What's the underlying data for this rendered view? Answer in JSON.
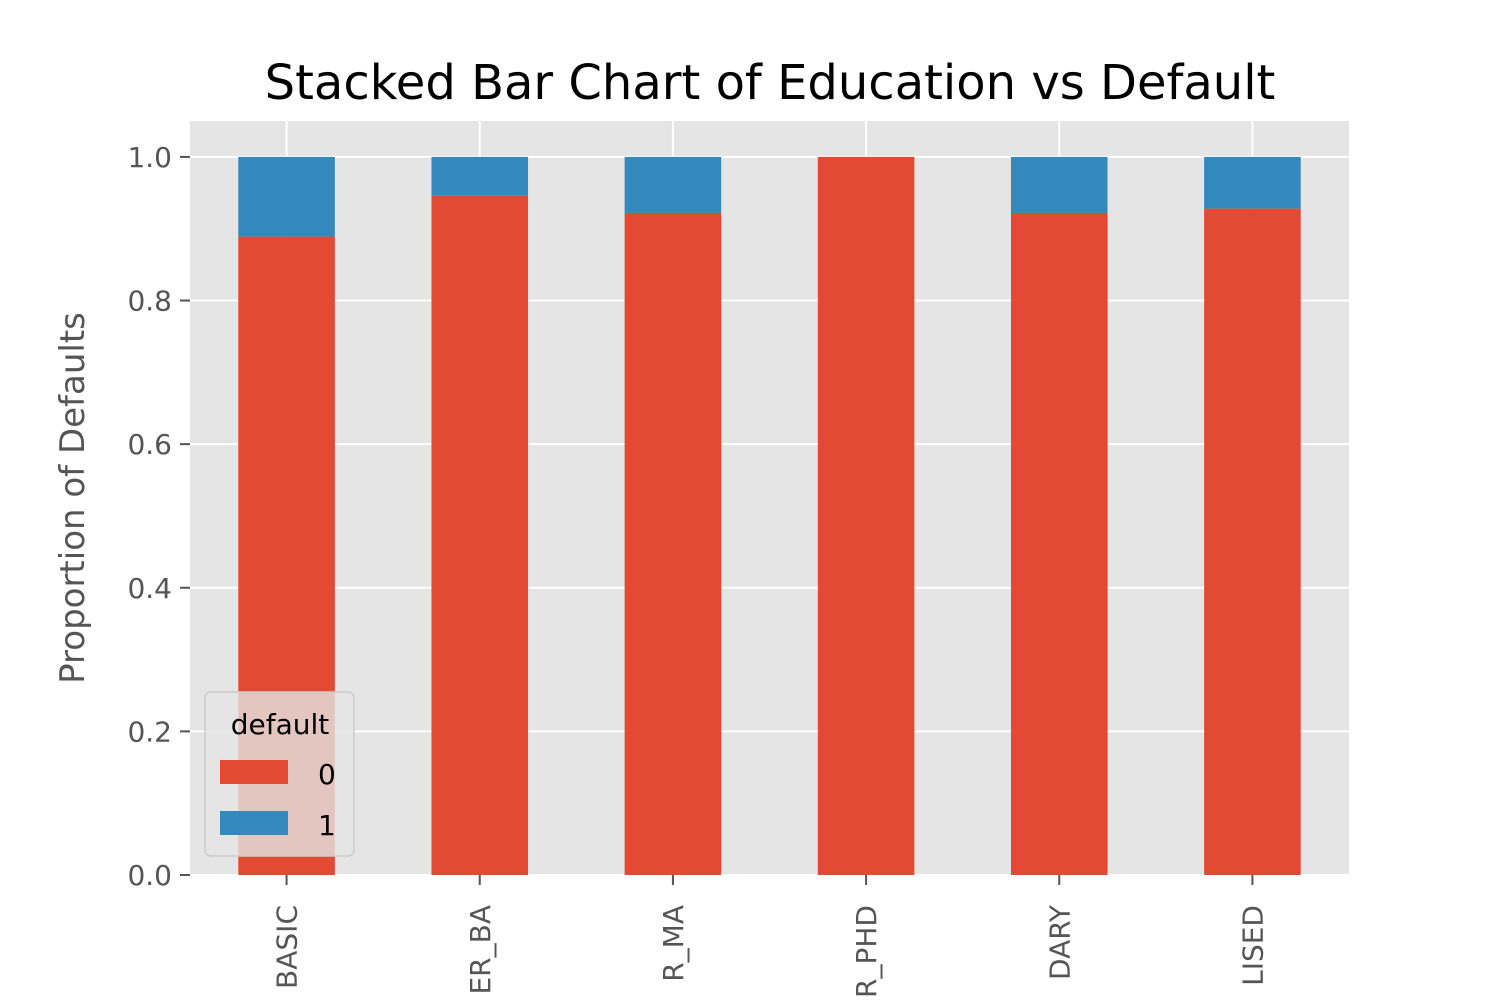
{
  "chart_data": {
    "type": "bar",
    "stacked": true,
    "title": "Stacked Bar Chart of Education vs Default",
    "xlabel": "",
    "ylabel": "Proportion of Defaults",
    "ylim": [
      0,
      1.05
    ],
    "yticks": [
      "0.0",
      "0.2",
      "0.4",
      "0.6",
      "0.8",
      "1.0"
    ],
    "grid": true,
    "legend_placement": "lower-left",
    "categories": [
      "BASIC",
      "ER_BA",
      "R_MA",
      "R_PHD",
      "DARY",
      "LISED"
    ],
    "legend_title": "default",
    "series": [
      {
        "name": "0",
        "color": "#E24A33",
        "values": [
          0.889,
          0.946,
          0.922,
          1.0,
          0.922,
          0.928
        ]
      },
      {
        "name": "1",
        "color": "#348ABD",
        "values": [
          0.111,
          0.054,
          0.078,
          0.0,
          0.078,
          0.072
        ]
      }
    ],
    "background": "#E5E5E5",
    "grid_color": "#FFFFFF"
  }
}
